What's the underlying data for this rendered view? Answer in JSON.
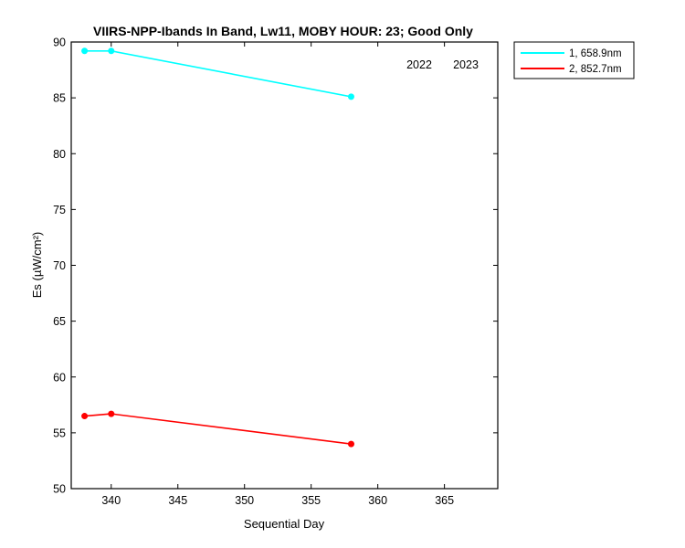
{
  "chart_data": {
    "type": "line",
    "title": "VIIRS-NPP-Ibands In Band,  Lw11, MOBY HOUR: 23;  Good Only",
    "xlabel": "Sequential Day",
    "ylabel": "Es (µW/cm²)",
    "xlim": [
      337,
      369
    ],
    "ylim": [
      50,
      90
    ],
    "xticks": [
      340,
      345,
      350,
      355,
      360,
      365
    ],
    "yticks": [
      50,
      55,
      60,
      65,
      70,
      75,
      80,
      85,
      90
    ],
    "grid": false,
    "legend_position": "outside-top-right",
    "annotations": [
      "2022",
      "2023"
    ],
    "series": [
      {
        "name": "1, 658.9nm",
        "color": "#00ffff",
        "x": [
          338,
          340,
          358
        ],
        "y": [
          89.2,
          89.2,
          85.1
        ]
      },
      {
        "name": "2, 852.7nm",
        "color": "#ff0000",
        "x": [
          338,
          340,
          358
        ],
        "y": [
          56.5,
          56.7,
          54.0
        ]
      }
    ]
  }
}
